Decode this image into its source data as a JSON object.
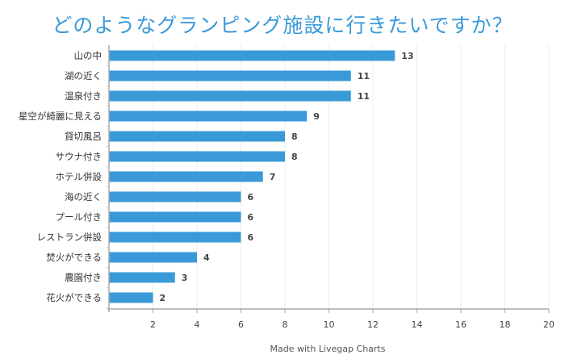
{
  "chart_data": {
    "type": "bar",
    "orientation": "horizontal",
    "title": "どのようなグランピング施設に行きたいですか？",
    "categories": [
      "山の中",
      "湖の近く",
      "温泉付き",
      "星空が綺麗に見える",
      "貸切風呂",
      "サウナ付き",
      "ホテル併設",
      "海の近く",
      "プール付き",
      "レストラン併設",
      "焚火ができる",
      "農園付き",
      "花火ができる"
    ],
    "values": [
      13,
      11,
      11,
      9,
      8,
      8,
      7,
      6,
      6,
      6,
      4,
      3,
      2
    ],
    "xlim": [
      0,
      20
    ],
    "xticks": [
      2,
      4,
      6,
      8,
      10,
      12,
      14,
      16,
      18,
      20
    ],
    "grid": true,
    "data_labels": true,
    "bar_color": "#3a9ad9",
    "credit": "Made with Livegap Charts"
  }
}
